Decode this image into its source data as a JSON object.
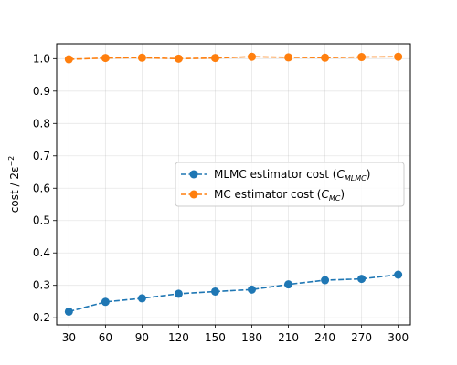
{
  "chart_data": {
    "type": "line",
    "title": "",
    "xlabel": "",
    "ylabel": "cost / 2ε⁻²",
    "x": [
      30,
      60,
      90,
      120,
      150,
      180,
      210,
      240,
      270,
      300
    ],
    "xticks": [
      30,
      60,
      90,
      120,
      150,
      180,
      210,
      240,
      270,
      300
    ],
    "yticks": [
      0.2,
      0.3,
      0.4,
      0.5,
      0.6,
      0.7,
      0.8,
      0.9,
      1.0
    ],
    "ytick_labels": [
      "0.2",
      "0.3",
      "0.4",
      "0.5",
      "0.6",
      "0.7",
      "0.8",
      "0.9",
      "1.0"
    ],
    "xlim": [
      20,
      310
    ],
    "ylim": [
      0.178,
      1.046
    ],
    "grid": true,
    "legend_position": "center-right",
    "series": [
      {
        "name": "MLMC estimator cost (C_MLMC)",
        "label_main": "MLMC estimator cost (",
        "label_sub": "MLMC",
        "label_tail": ")",
        "color": "#1f77b4",
        "values": [
          0.219,
          0.249,
          0.26,
          0.274,
          0.281,
          0.287,
          0.303,
          0.316,
          0.32,
          0.333
        ]
      },
      {
        "name": "MC estimator cost (C_MC)",
        "label_main": "MC estimator cost (",
        "label_sub": "MC",
        "label_tail": ")",
        "color": "#ff7f0e",
        "values": [
          0.998,
          1.002,
          1.003,
          1.0,
          1.002,
          1.006,
          1.004,
          1.003,
          1.005,
          1.006
        ]
      }
    ]
  }
}
